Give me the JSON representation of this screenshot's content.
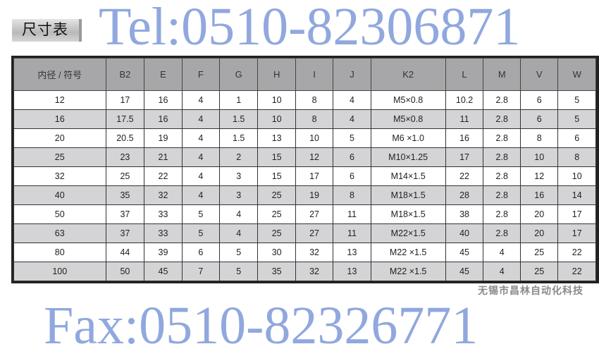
{
  "title": "尺寸表",
  "table": {
    "headers": [
      "内径 / 符号",
      "B2",
      "E",
      "F",
      "G",
      "H",
      "I",
      "J",
      "K2",
      "L",
      "M",
      "V",
      "W"
    ],
    "rows": [
      [
        "12",
        "17",
        "16",
        "4",
        "1",
        "10",
        "8",
        "4",
        "M5×0.8",
        "10.2",
        "2.8",
        "6",
        "5"
      ],
      [
        "16",
        "17.5",
        "16",
        "4",
        "1.5",
        "10",
        "8",
        "4",
        "M5×0.8",
        "11",
        "2.8",
        "6",
        "5"
      ],
      [
        "20",
        "20.5",
        "19",
        "4",
        "1.5",
        "13",
        "10",
        "5",
        "M6 ×1.0",
        "16",
        "2.8",
        "8",
        "6"
      ],
      [
        "25",
        "23",
        "21",
        "4",
        "2",
        "15",
        "12",
        "6",
        "M10×1.25",
        "17",
        "2.8",
        "10",
        "8"
      ],
      [
        "32",
        "25",
        "22",
        "4",
        "3",
        "15",
        "17",
        "6",
        "M14×1.5",
        "22",
        "2.8",
        "12",
        "10"
      ],
      [
        "40",
        "35",
        "32",
        "4",
        "3",
        "25",
        "19",
        "8",
        "M18×1.5",
        "28",
        "2.8",
        "16",
        "14"
      ],
      [
        "50",
        "37",
        "33",
        "5",
        "4",
        "25",
        "27",
        "11",
        "M18×1.5",
        "38",
        "2.8",
        "20",
        "17"
      ],
      [
        "63",
        "37",
        "33",
        "5",
        "4",
        "25",
        "27",
        "11",
        "M22×1.5",
        "40",
        "2.8",
        "20",
        "17"
      ],
      [
        "80",
        "44",
        "39",
        "6",
        "5",
        "30",
        "32",
        "13",
        "M22 ×1.5",
        "45",
        "4",
        "25",
        "22"
      ],
      [
        "100",
        "50",
        "45",
        "7",
        "5",
        "35",
        "32",
        "13",
        "M22 ×1.5",
        "45",
        "4",
        "25",
        "22"
      ]
    ]
  },
  "watermarks": {
    "tel": "Tel:0510-82306871",
    "fax": "Fax:0510-82326771",
    "company": "无锡市昌林自动化科技"
  },
  "colors": {
    "header_bg": "#a7a7a9",
    "stripe": "#d4d4d6",
    "watermark": "#466ec8"
  }
}
